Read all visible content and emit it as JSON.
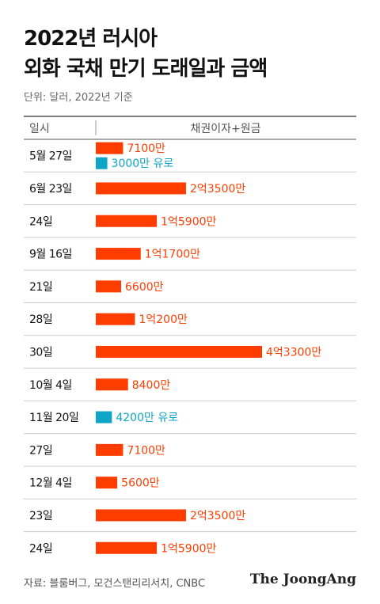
{
  "title_lines": [
    "2022년 러시아",
    "외화 국채 만기 도래일과 금액"
  ],
  "unit_note": "단위: 달러, 2022년 기준",
  "source": "자료: 블룸버그, 모건스탠리리서치, CNBC",
  "logo": "The JoongAng",
  "colors": {
    "usd": "#ff3d00",
    "eur": "#0ea5c6",
    "rule": "#555555",
    "divider": "#cccccc"
  },
  "chart_data": {
    "type": "bar",
    "orientation": "horizontal",
    "column_headers": [
      "일시",
      "채권이자+원금"
    ],
    "rows": [
      {
        "date": "5월 27일",
        "bars": [
          {
            "currency": "USD",
            "value": 71000000,
            "label": "7100만"
          },
          {
            "currency": "EUR",
            "value": 30000000,
            "label": "3000만 유로"
          }
        ]
      },
      {
        "date": "6월 23일",
        "bars": [
          {
            "currency": "USD",
            "value": 235000000,
            "label": "2억3500만"
          }
        ]
      },
      {
        "date": "24일",
        "bars": [
          {
            "currency": "USD",
            "value": 159000000,
            "label": "1억5900만"
          }
        ]
      },
      {
        "date": "9월 16일",
        "bars": [
          {
            "currency": "USD",
            "value": 117000000,
            "label": "1억1700만"
          }
        ]
      },
      {
        "date": "21일",
        "bars": [
          {
            "currency": "USD",
            "value": 66000000,
            "label": "6600만"
          }
        ]
      },
      {
        "date": "28일",
        "bars": [
          {
            "currency": "USD",
            "value": 102000000,
            "label": "1억200만"
          }
        ]
      },
      {
        "date": "30일",
        "bars": [
          {
            "currency": "USD",
            "value": 433000000,
            "label": "4억3300만"
          }
        ]
      },
      {
        "date": "10월 4일",
        "bars": [
          {
            "currency": "USD",
            "value": 84000000,
            "label": "8400만"
          }
        ]
      },
      {
        "date": "11월 20일",
        "bars": [
          {
            "currency": "EUR",
            "value": 42000000,
            "label": "4200만 유로"
          }
        ]
      },
      {
        "date": "27일",
        "bars": [
          {
            "currency": "USD",
            "value": 71000000,
            "label": "7100만"
          }
        ]
      },
      {
        "date": "12월 4일",
        "bars": [
          {
            "currency": "USD",
            "value": 56000000,
            "label": "5600만"
          }
        ]
      },
      {
        "date": "23일",
        "bars": [
          {
            "currency": "USD",
            "value": 235000000,
            "label": "2억3500만"
          }
        ]
      },
      {
        "date": "24일",
        "bars": [
          {
            "currency": "USD",
            "value": 159000000,
            "label": "1억5900만"
          }
        ]
      }
    ],
    "xlim": [
      0,
      433000000
    ],
    "grid": false,
    "legend": "none"
  }
}
